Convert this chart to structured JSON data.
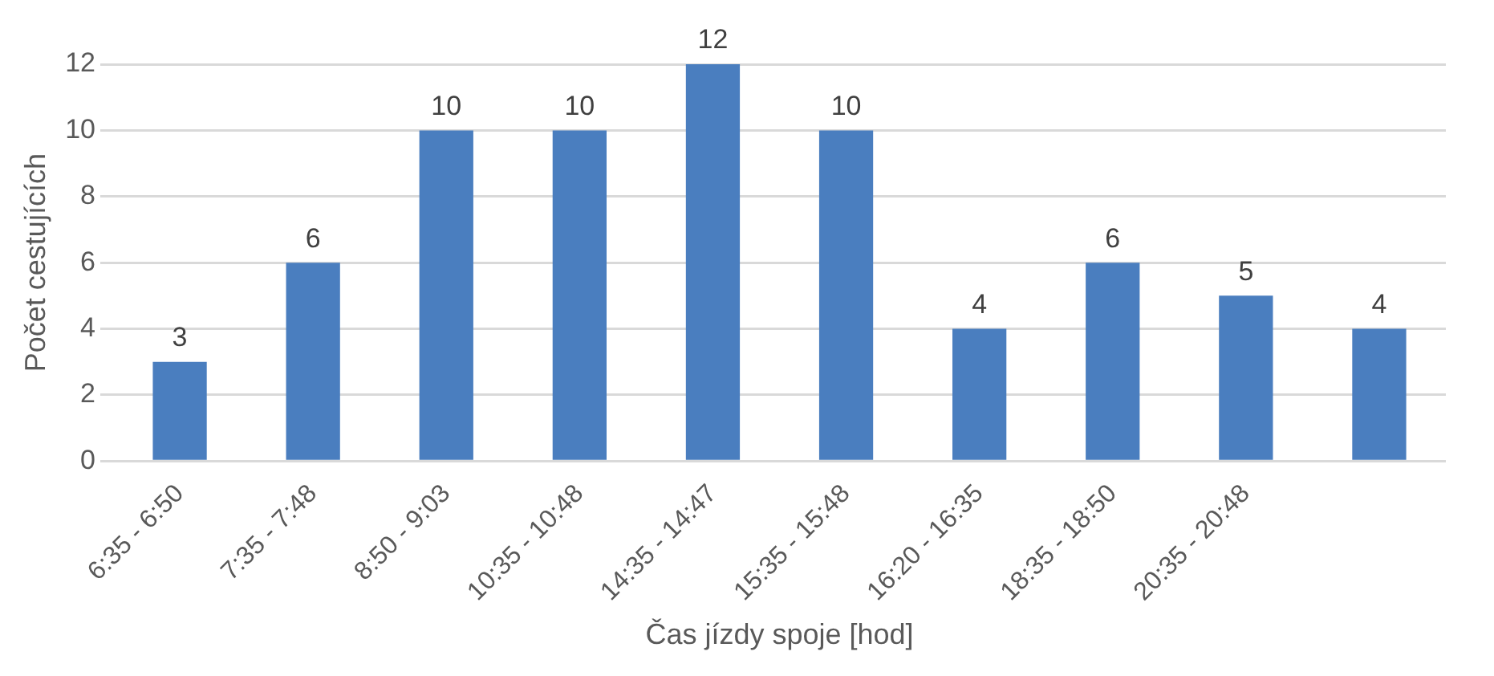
{
  "chart_data": {
    "type": "bar",
    "xlabel": "Čas jízdy spoje [hod]",
    "ylabel": "Počet cestujících",
    "categories": [
      "6:35 - 6:50",
      "7:35 - 7:48",
      "8:50 - 9:03",
      "10:35 - 10:48",
      "14:35 - 14:47",
      "15:35 - 15:48",
      "16:20 - 16:35",
      "18:35 - 18:50",
      "20:35 - 20:48",
      null
    ],
    "values": [
      3,
      6,
      10,
      10,
      12,
      10,
      4,
      6,
      5,
      4
    ],
    "color": "#4a7ebf",
    "ylim": [
      0,
      12
    ],
    "yticks": [
      0,
      2,
      4,
      6,
      8,
      10,
      12
    ],
    "grid": "y",
    "data_labels": true,
    "legend": false
  }
}
